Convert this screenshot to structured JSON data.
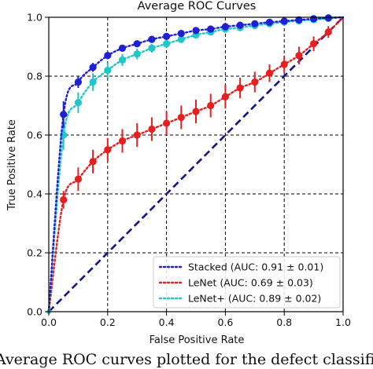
{
  "caption": "Average ROC curves plotted for the defect classification",
  "chart_data": {
    "type": "line",
    "title": "Average ROC Curves",
    "xlabel": "False Positive Rate",
    "ylabel": "True Positive Rate",
    "xlim": [
      0,
      1
    ],
    "ylim": [
      0,
      1
    ],
    "xticks": [
      "0.0",
      "0.2",
      "0.4",
      "0.6",
      "0.8",
      "1.0"
    ],
    "yticks": [
      "0.0",
      "0.2",
      "0.4",
      "0.6",
      "0.8",
      "1.0"
    ],
    "grid": true,
    "legend_position": "bottom-right",
    "series": [
      {
        "name": "Stacked (AUC: 0.91 ± 0.01)",
        "color": "#1f1fd6",
        "points": [
          [
            0.0,
            0.0
          ],
          [
            0.05,
            0.67
          ],
          [
            0.1,
            0.78
          ],
          [
            0.15,
            0.83
          ],
          [
            0.2,
            0.87
          ],
          [
            0.25,
            0.895
          ],
          [
            0.3,
            0.91
          ],
          [
            0.35,
            0.925
          ],
          [
            0.4,
            0.935
          ],
          [
            0.45,
            0.945
          ],
          [
            0.5,
            0.955
          ],
          [
            0.55,
            0.96
          ],
          [
            0.6,
            0.968
          ],
          [
            0.65,
            0.973
          ],
          [
            0.7,
            0.978
          ],
          [
            0.75,
            0.983
          ],
          [
            0.8,
            0.987
          ],
          [
            0.85,
            0.991
          ],
          [
            0.9,
            0.995
          ],
          [
            0.95,
            0.998
          ],
          [
            1.0,
            1.0
          ]
        ],
        "errors": [
          0,
          0.045,
          0.02,
          0.015,
          0.012,
          0.01,
          0.01,
          0.008,
          0.008,
          0.007,
          0.007,
          0.006,
          0.006,
          0.005,
          0.005,
          0.005,
          0.004,
          0.004,
          0.003,
          0.003,
          0
        ]
      },
      {
        "name": "LeNet (AUC: 0.69 ± 0.03)",
        "color": "#e62020",
        "points": [
          [
            0.0,
            0.0
          ],
          [
            0.05,
            0.38
          ],
          [
            0.1,
            0.45
          ],
          [
            0.15,
            0.51
          ],
          [
            0.2,
            0.55
          ],
          [
            0.25,
            0.58
          ],
          [
            0.3,
            0.6
          ],
          [
            0.35,
            0.62
          ],
          [
            0.4,
            0.64
          ],
          [
            0.45,
            0.66
          ],
          [
            0.5,
            0.68
          ],
          [
            0.55,
            0.7
          ],
          [
            0.6,
            0.73
          ],
          [
            0.65,
            0.76
          ],
          [
            0.7,
            0.78
          ],
          [
            0.75,
            0.81
          ],
          [
            0.8,
            0.84
          ],
          [
            0.85,
            0.87
          ],
          [
            0.9,
            0.91
          ],
          [
            0.95,
            0.95
          ],
          [
            1.0,
            1.0
          ]
        ],
        "errors": [
          0,
          0.03,
          0.04,
          0.04,
          0.04,
          0.04,
          0.04,
          0.04,
          0.04,
          0.04,
          0.04,
          0.04,
          0.04,
          0.035,
          0.035,
          0.03,
          0.03,
          0.03,
          0.025,
          0.02,
          0
        ]
      },
      {
        "name": "LeNet+ (AUC: 0.89 ± 0.02)",
        "color": "#1ec8c8",
        "points": [
          [
            0.0,
            0.0
          ],
          [
            0.05,
            0.6
          ],
          [
            0.1,
            0.71
          ],
          [
            0.15,
            0.78
          ],
          [
            0.2,
            0.82
          ],
          [
            0.25,
            0.855
          ],
          [
            0.3,
            0.875
          ],
          [
            0.35,
            0.895
          ],
          [
            0.4,
            0.91
          ],
          [
            0.45,
            0.925
          ],
          [
            0.5,
            0.94
          ],
          [
            0.55,
            0.95
          ],
          [
            0.6,
            0.96
          ],
          [
            0.65,
            0.965
          ],
          [
            0.7,
            0.972
          ],
          [
            0.75,
            0.978
          ],
          [
            0.8,
            0.984
          ],
          [
            0.85,
            0.988
          ],
          [
            0.9,
            0.992
          ],
          [
            0.95,
            0.996
          ],
          [
            1.0,
            1.0
          ]
        ],
        "errors": [
          0,
          0.05,
          0.035,
          0.03,
          0.025,
          0.02,
          0.018,
          0.015,
          0.013,
          0.012,
          0.011,
          0.01,
          0.009,
          0.008,
          0.007,
          0.006,
          0.005,
          0.005,
          0.004,
          0.003,
          0
        ]
      }
    ],
    "reference_line": {
      "color": "#14148c",
      "from": [
        0,
        0
      ],
      "to": [
        1,
        1
      ]
    }
  }
}
